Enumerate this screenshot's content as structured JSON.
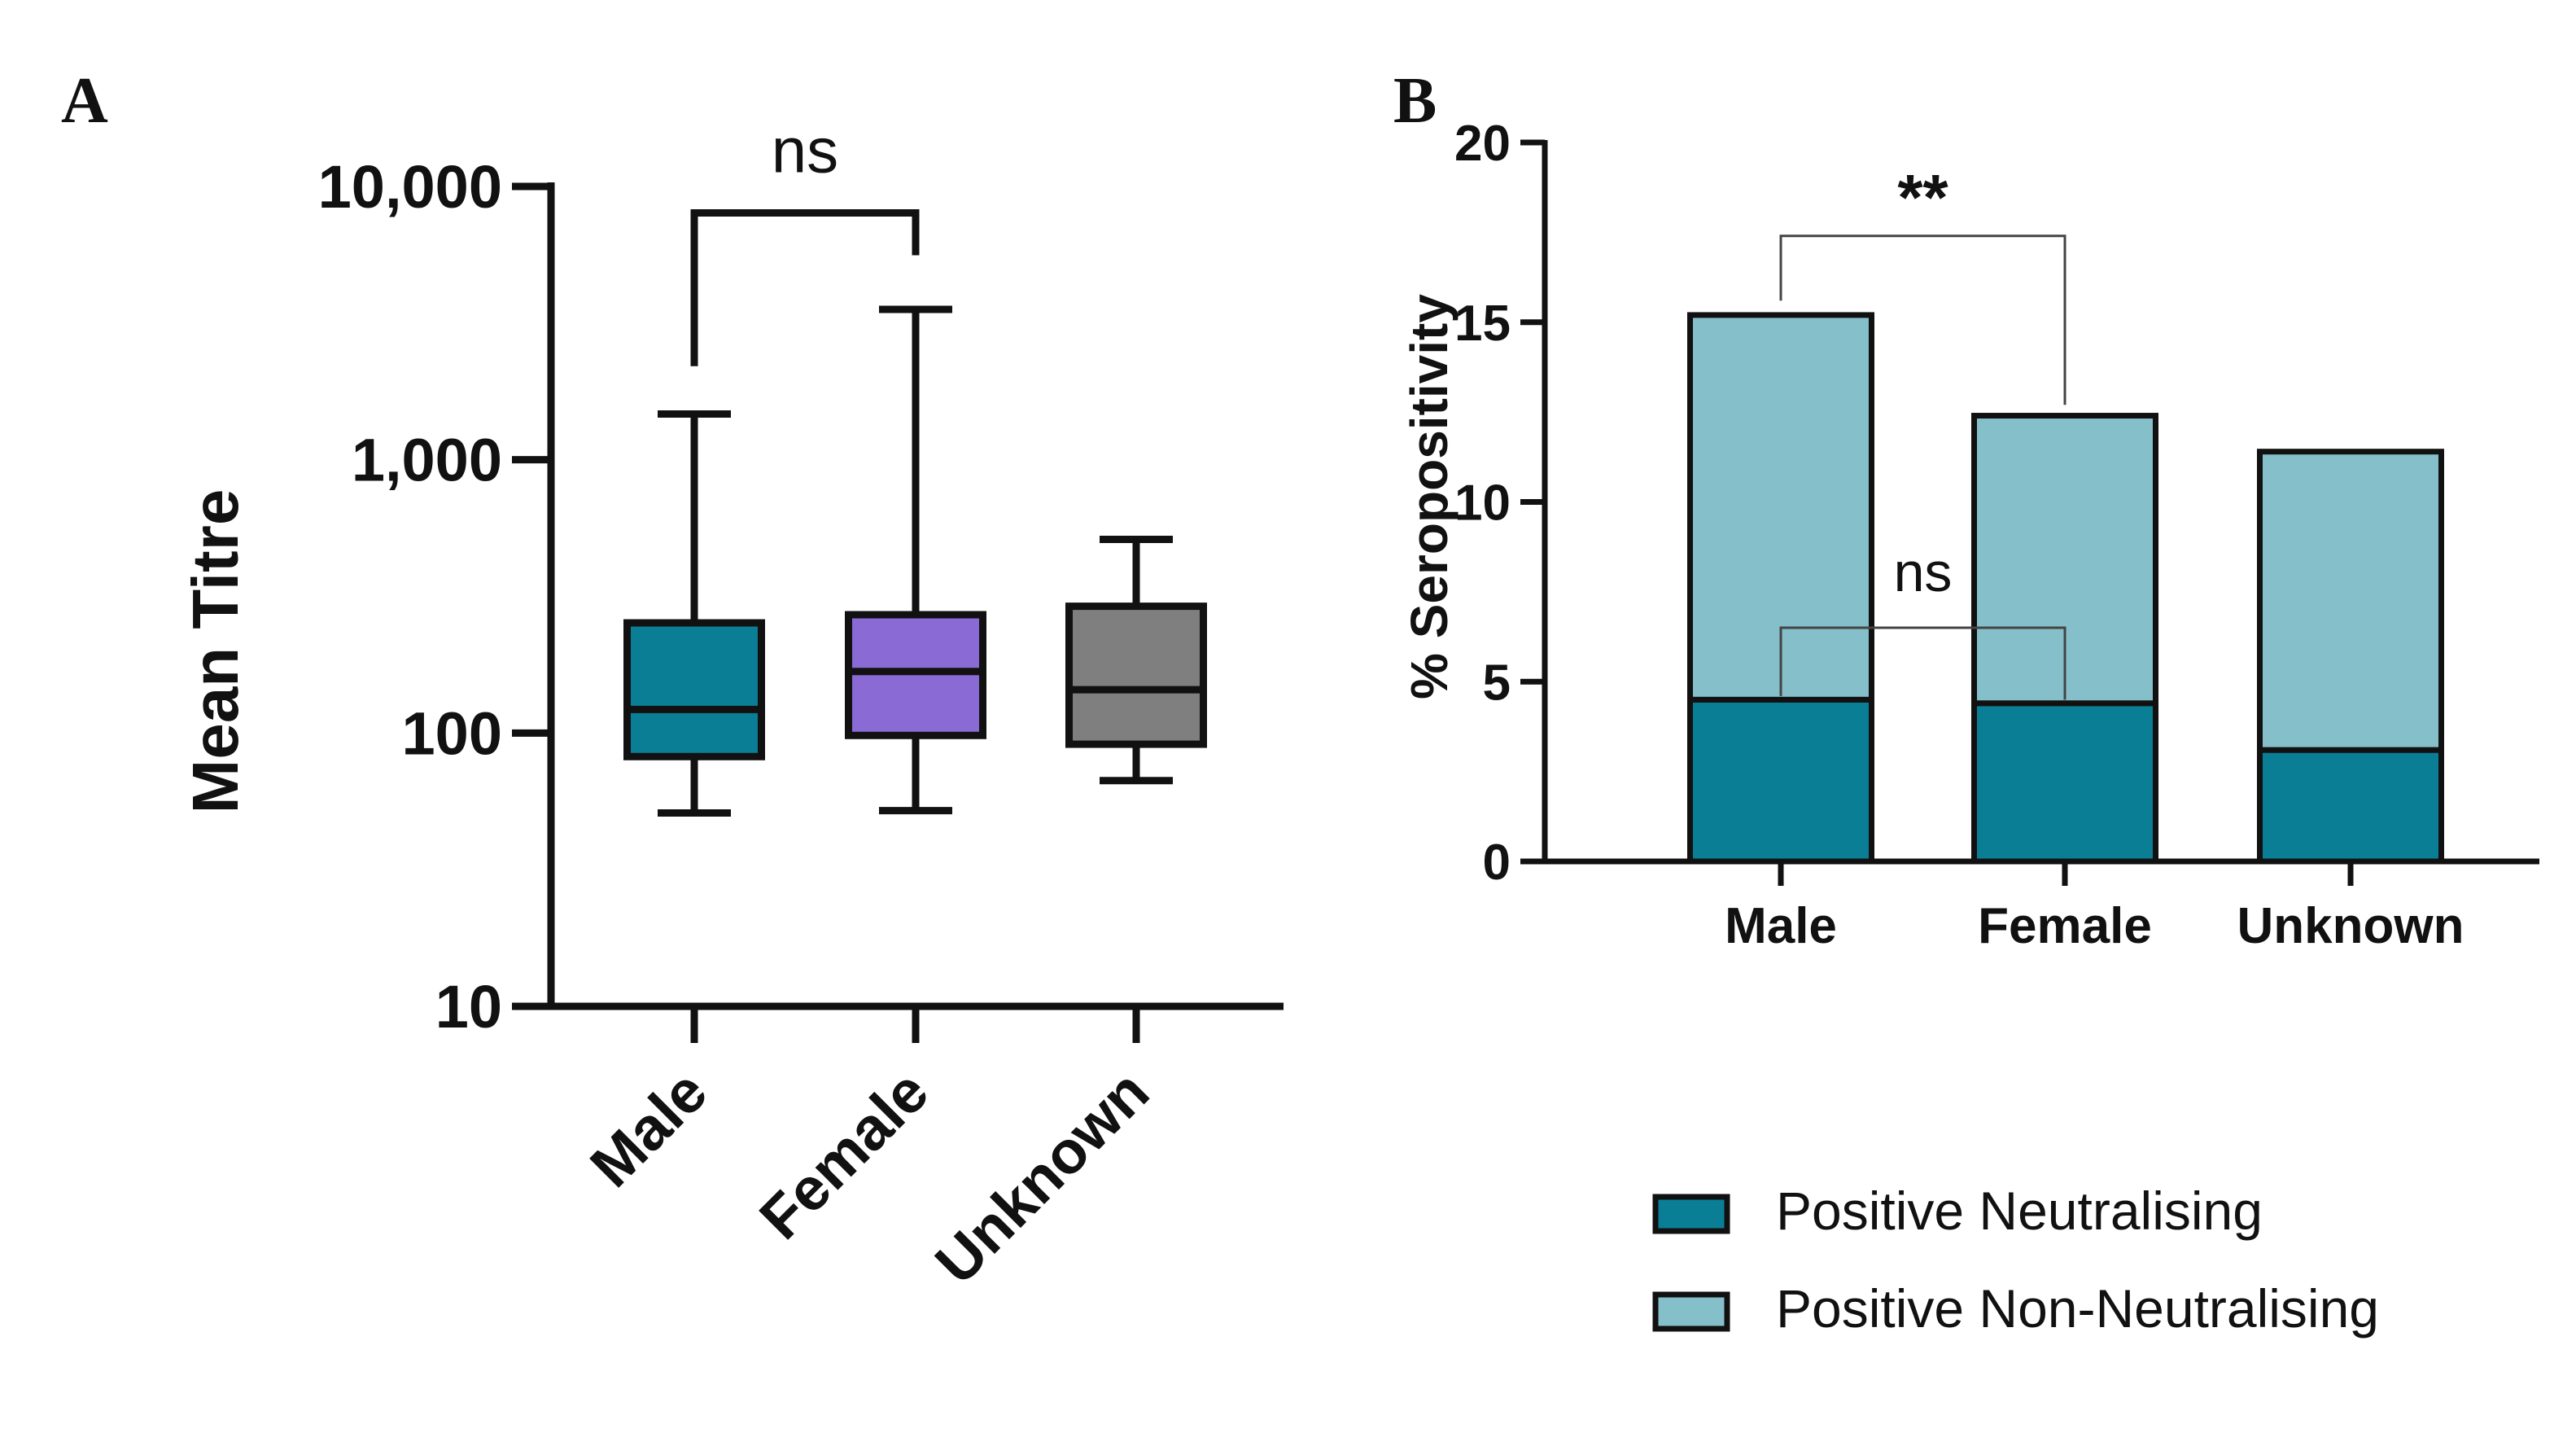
{
  "colors": {
    "male": "#0a7e95",
    "female": "#8a6bd6",
    "unknown": "#7f7f7f",
    "neutralising": "#0a7e95",
    "non_neutralising": "#85bfc9",
    "axis": "#111111"
  },
  "chart_data": [
    {
      "panel": "A",
      "type": "box",
      "ylabel": "Mean Titre",
      "yscale": "log",
      "ylim": [
        10,
        10000
      ],
      "yticks": [
        10,
        100,
        1000,
        10000
      ],
      "ytick_labels": [
        "10",
        "100",
        "1,000",
        "10,000"
      ],
      "categories": [
        "Male",
        "Female",
        "Unknown"
      ],
      "boxes": [
        {
          "category": "Male",
          "min": 51,
          "q1": 82,
          "median": 122,
          "q3": 253,
          "max": 1470,
          "color_key": "male"
        },
        {
          "category": "Female",
          "min": 52,
          "q1": 98,
          "median": 168,
          "q3": 271,
          "max": 3550,
          "color_key": "female"
        },
        {
          "category": "Unknown",
          "min": 67,
          "q1": 91,
          "median": 144,
          "q3": 291,
          "max": 511,
          "color_key": "unknown"
        }
      ],
      "annotations": [
        {
          "text": "ns",
          "from": "Male",
          "to": "Female",
          "level": 8000,
          "left_drop": 2200,
          "right_drop": 5600
        }
      ]
    },
    {
      "panel": "B",
      "type": "bar",
      "stacked": true,
      "ylabel": "% Seropositivity",
      "ylim": [
        0,
        20
      ],
      "yticks": [
        0,
        5,
        10,
        15,
        20
      ],
      "categories": [
        "Male",
        "Female",
        "Unknown"
      ],
      "series": [
        {
          "name": "Positive Neutralising",
          "values": [
            4.5,
            4.4,
            3.1
          ],
          "color_key": "neutralising"
        },
        {
          "name": "Positive Non-Neutralising",
          "values": [
            10.7,
            8.0,
            8.3
          ],
          "color_key": "non_neutralising"
        }
      ],
      "legend_position": "bottom",
      "annotations": [
        {
          "text": "**",
          "from": "Male",
          "to": "Female",
          "level": 17.4,
          "left_drop": 15.6,
          "right_drop": 12.7
        },
        {
          "text": "ns",
          "from": "Male",
          "to": "Female",
          "level": 6.5,
          "left_drop": 4.6,
          "right_drop": 4.5
        }
      ]
    }
  ],
  "panel_labels": [
    "A",
    "B"
  ]
}
